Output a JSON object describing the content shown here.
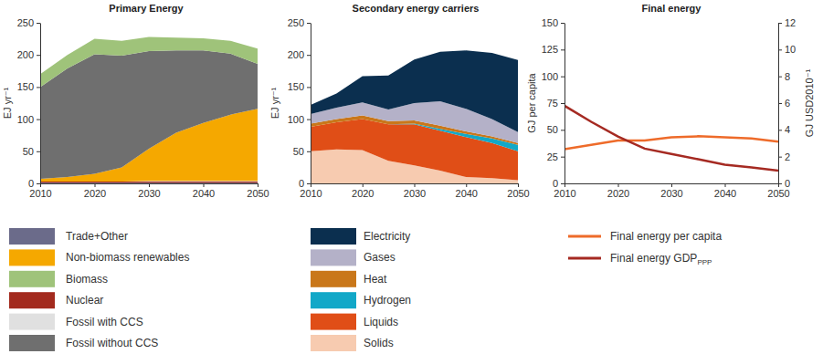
{
  "chart_data": [
    {
      "type": "area",
      "title": "Primary Energy",
      "y_label": "EJ yr⁻¹",
      "x": [
        2010,
        2015,
        2020,
        2025,
        2030,
        2035,
        2040,
        2045,
        2050
      ],
      "xlim": [
        2010,
        2050
      ],
      "xticks": [
        2010,
        2020,
        2030,
        2040,
        2050
      ],
      "ylim": [
        0,
        250
      ],
      "yticks": [
        0,
        50,
        100,
        150,
        200,
        250
      ],
      "stacked": true,
      "grid": false,
      "legend": "bottom",
      "series": [
        {
          "name": "Trade+Other",
          "color": "#6b6b8a",
          "values": [
            1,
            1,
            1,
            1,
            1,
            1,
            1,
            1,
            1
          ]
        },
        {
          "name": "Non-biomass renewables",
          "color": "#f5a800",
          "values": [
            4,
            7,
            12,
            22,
            50,
            75,
            90,
            103,
            112
          ]
        },
        {
          "name": "Biomass",
          "color": "#9fc37a",
          "values": [
            20,
            21,
            24,
            23,
            22,
            20,
            19,
            20,
            24
          ]
        },
        {
          "name": "Nuclear",
          "color": "#a32a1e",
          "values": [
            2,
            2,
            2,
            2,
            2,
            2,
            2,
            2,
            2
          ]
        },
        {
          "name": "Fossil with CCS",
          "color": "#e0e0e0",
          "values": [
            0,
            0,
            0,
            0,
            1,
            1,
            1,
            1,
            1
          ]
        },
        {
          "name": "Fossil without CCS",
          "color": "#6f6f6f",
          "values": [
            143,
            169,
            186,
            174,
            152,
            128,
            113,
            95,
            70
          ]
        }
      ]
    },
    {
      "type": "area",
      "title": "Secondary energy carriers",
      "y_label": "EJ yr⁻¹",
      "x": [
        2010,
        2015,
        2020,
        2025,
        2030,
        2035,
        2040,
        2045,
        2050
      ],
      "xlim": [
        2010,
        2050
      ],
      "xticks": [
        2010,
        2020,
        2030,
        2040,
        2050
      ],
      "ylim": [
        0,
        250
      ],
      "yticks": [
        0,
        50,
        100,
        150,
        200,
        250
      ],
      "stacked": true,
      "grid": false,
      "legend": "bottom",
      "series": [
        {
          "name": "Electricity",
          "color": "#0b2f4f",
          "values": [
            14,
            22,
            41,
            53,
            68,
            77,
            91,
            103,
            112
          ]
        },
        {
          "name": "Gases",
          "color": "#b4b1c8",
          "values": [
            15,
            18,
            20,
            18,
            27,
            38,
            35,
            27,
            17
          ]
        },
        {
          "name": "Heat",
          "color": "#c9771a",
          "values": [
            5,
            5,
            6,
            5,
            5,
            5,
            4,
            3,
            3
          ]
        },
        {
          "name": "Hydrogen",
          "color": "#12a8c8",
          "values": [
            0,
            0,
            0,
            0,
            1,
            3,
            5,
            7,
            10
          ]
        },
        {
          "name": "Liquids",
          "color": "#e04e17",
          "values": [
            38,
            42,
            48,
            57,
            64,
            62,
            62,
            55,
            45
          ]
        },
        {
          "name": "Solids",
          "color": "#f7cbb0",
          "values": [
            50,
            53,
            52,
            35,
            28,
            20,
            10,
            8,
            5
          ]
        }
      ]
    },
    {
      "type": "line",
      "title": "Final energy",
      "y_label": "GJ per capita",
      "y2_label": "GJ USD2010⁻¹",
      "x": [
        2010,
        2015,
        2020,
        2025,
        2030,
        2035,
        2040,
        2045,
        2050
      ],
      "xlim": [
        2010,
        2050
      ],
      "xticks": [
        2010,
        2020,
        2030,
        2040,
        2050
      ],
      "ylim": [
        0,
        150
      ],
      "yticks": [
        0,
        25,
        50,
        75,
        100,
        125,
        150
      ],
      "y2lim": [
        0,
        12
      ],
      "y2ticks": [
        0,
        2,
        4,
        6,
        8,
        10,
        12
      ],
      "grid": false,
      "legend": "bottom",
      "series": [
        {
          "name": "Final energy per capita",
          "color": "#ee6b2a",
          "values": [
            32,
            36,
            40,
            40,
            43,
            44,
            43,
            42,
            39
          ]
        },
        {
          "name": "Final energy GDP",
          "subscript": "PPP",
          "color": "#a52a22",
          "axis": "y2",
          "values": [
            5.8,
            4.6,
            3.5,
            2.6,
            2.2,
            1.8,
            1.4,
            1.2,
            0.95
          ]
        }
      ]
    }
  ]
}
